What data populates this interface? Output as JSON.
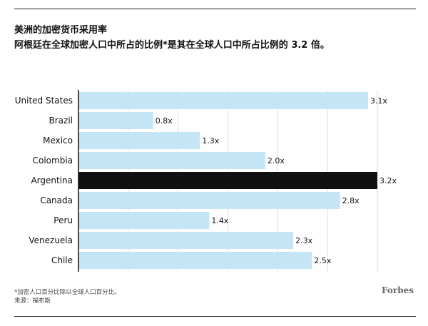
{
  "header": {
    "title": "美洲的加密货币采用率",
    "subtitle": "阿根廷在全球加密人口中所占的比例*是其在全球人口中所占比例的 3.2 倍。"
  },
  "footer": {
    "footnote": "*加密人口百分比除以全球人口百分比。",
    "source": "来源：福布斯",
    "brand": "Forbes"
  },
  "colors": {
    "bar": "#c5e4f6",
    "highlight": "#111111",
    "grid": "#dddddd",
    "axis": "#111111",
    "text": "#111111"
  },
  "chart_data": {
    "type": "bar",
    "orientation": "horizontal",
    "categories": [
      "United States",
      "Brazil",
      "Mexico",
      "Colombia",
      "Argentina",
      "Canada",
      "Peru",
      "Venezuela",
      "Chile"
    ],
    "values": [
      3.1,
      0.8,
      1.3,
      2.0,
      3.2,
      2.8,
      1.4,
      2.3,
      2.5
    ],
    "value_labels": [
      "3.1x",
      "0.8x",
      "1.3x",
      "2.0x",
      "3.2x",
      "2.8x",
      "1.4x",
      "2.3x",
      "2.5x"
    ],
    "highlight": "Argentina",
    "xlim": [
      0,
      3.2
    ],
    "grid": true,
    "title": "美洲的加密货币采用率"
  }
}
